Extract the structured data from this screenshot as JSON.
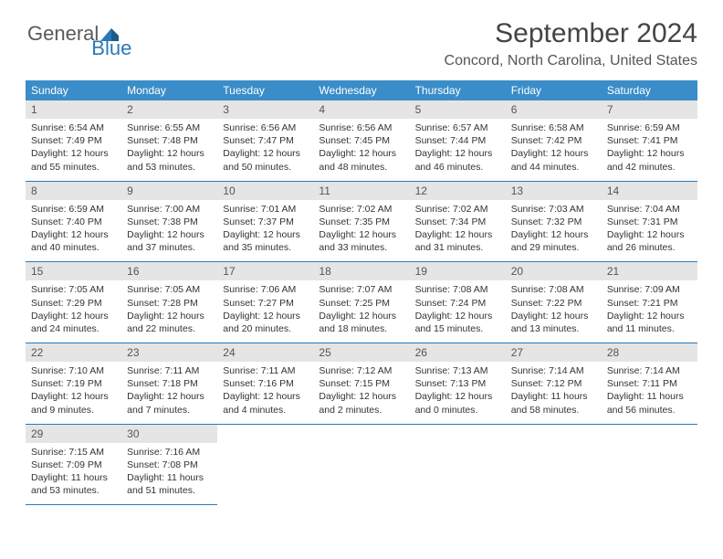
{
  "logo": {
    "general": "General",
    "blue": "Blue"
  },
  "header": {
    "month_title": "September 2024",
    "location": "Concord, North Carolina, United States"
  },
  "day_names": [
    "Sunday",
    "Monday",
    "Tuesday",
    "Wednesday",
    "Thursday",
    "Friday",
    "Saturday"
  ],
  "colors": {
    "header_bg": "#3a8dc8",
    "daynum_bg": "#e5e5e5",
    "border": "#2a7ab8",
    "title": "#444444",
    "location": "#555555",
    "body_text": "#333333"
  },
  "weeks": [
    [
      {
        "num": "1",
        "sunrise": "Sunrise: 6:54 AM",
        "sunset": "Sunset: 7:49 PM",
        "daylight": "Daylight: 12 hours and 55 minutes."
      },
      {
        "num": "2",
        "sunrise": "Sunrise: 6:55 AM",
        "sunset": "Sunset: 7:48 PM",
        "daylight": "Daylight: 12 hours and 53 minutes."
      },
      {
        "num": "3",
        "sunrise": "Sunrise: 6:56 AM",
        "sunset": "Sunset: 7:47 PM",
        "daylight": "Daylight: 12 hours and 50 minutes."
      },
      {
        "num": "4",
        "sunrise": "Sunrise: 6:56 AM",
        "sunset": "Sunset: 7:45 PM",
        "daylight": "Daylight: 12 hours and 48 minutes."
      },
      {
        "num": "5",
        "sunrise": "Sunrise: 6:57 AM",
        "sunset": "Sunset: 7:44 PM",
        "daylight": "Daylight: 12 hours and 46 minutes."
      },
      {
        "num": "6",
        "sunrise": "Sunrise: 6:58 AM",
        "sunset": "Sunset: 7:42 PM",
        "daylight": "Daylight: 12 hours and 44 minutes."
      },
      {
        "num": "7",
        "sunrise": "Sunrise: 6:59 AM",
        "sunset": "Sunset: 7:41 PM",
        "daylight": "Daylight: 12 hours and 42 minutes."
      }
    ],
    [
      {
        "num": "8",
        "sunrise": "Sunrise: 6:59 AM",
        "sunset": "Sunset: 7:40 PM",
        "daylight": "Daylight: 12 hours and 40 minutes."
      },
      {
        "num": "9",
        "sunrise": "Sunrise: 7:00 AM",
        "sunset": "Sunset: 7:38 PM",
        "daylight": "Daylight: 12 hours and 37 minutes."
      },
      {
        "num": "10",
        "sunrise": "Sunrise: 7:01 AM",
        "sunset": "Sunset: 7:37 PM",
        "daylight": "Daylight: 12 hours and 35 minutes."
      },
      {
        "num": "11",
        "sunrise": "Sunrise: 7:02 AM",
        "sunset": "Sunset: 7:35 PM",
        "daylight": "Daylight: 12 hours and 33 minutes."
      },
      {
        "num": "12",
        "sunrise": "Sunrise: 7:02 AM",
        "sunset": "Sunset: 7:34 PM",
        "daylight": "Daylight: 12 hours and 31 minutes."
      },
      {
        "num": "13",
        "sunrise": "Sunrise: 7:03 AM",
        "sunset": "Sunset: 7:32 PM",
        "daylight": "Daylight: 12 hours and 29 minutes."
      },
      {
        "num": "14",
        "sunrise": "Sunrise: 7:04 AM",
        "sunset": "Sunset: 7:31 PM",
        "daylight": "Daylight: 12 hours and 26 minutes."
      }
    ],
    [
      {
        "num": "15",
        "sunrise": "Sunrise: 7:05 AM",
        "sunset": "Sunset: 7:29 PM",
        "daylight": "Daylight: 12 hours and 24 minutes."
      },
      {
        "num": "16",
        "sunrise": "Sunrise: 7:05 AM",
        "sunset": "Sunset: 7:28 PM",
        "daylight": "Daylight: 12 hours and 22 minutes."
      },
      {
        "num": "17",
        "sunrise": "Sunrise: 7:06 AM",
        "sunset": "Sunset: 7:27 PM",
        "daylight": "Daylight: 12 hours and 20 minutes."
      },
      {
        "num": "18",
        "sunrise": "Sunrise: 7:07 AM",
        "sunset": "Sunset: 7:25 PM",
        "daylight": "Daylight: 12 hours and 18 minutes."
      },
      {
        "num": "19",
        "sunrise": "Sunrise: 7:08 AM",
        "sunset": "Sunset: 7:24 PM",
        "daylight": "Daylight: 12 hours and 15 minutes."
      },
      {
        "num": "20",
        "sunrise": "Sunrise: 7:08 AM",
        "sunset": "Sunset: 7:22 PM",
        "daylight": "Daylight: 12 hours and 13 minutes."
      },
      {
        "num": "21",
        "sunrise": "Sunrise: 7:09 AM",
        "sunset": "Sunset: 7:21 PM",
        "daylight": "Daylight: 12 hours and 11 minutes."
      }
    ],
    [
      {
        "num": "22",
        "sunrise": "Sunrise: 7:10 AM",
        "sunset": "Sunset: 7:19 PM",
        "daylight": "Daylight: 12 hours and 9 minutes."
      },
      {
        "num": "23",
        "sunrise": "Sunrise: 7:11 AM",
        "sunset": "Sunset: 7:18 PM",
        "daylight": "Daylight: 12 hours and 7 minutes."
      },
      {
        "num": "24",
        "sunrise": "Sunrise: 7:11 AM",
        "sunset": "Sunset: 7:16 PM",
        "daylight": "Daylight: 12 hours and 4 minutes."
      },
      {
        "num": "25",
        "sunrise": "Sunrise: 7:12 AM",
        "sunset": "Sunset: 7:15 PM",
        "daylight": "Daylight: 12 hours and 2 minutes."
      },
      {
        "num": "26",
        "sunrise": "Sunrise: 7:13 AM",
        "sunset": "Sunset: 7:13 PM",
        "daylight": "Daylight: 12 hours and 0 minutes."
      },
      {
        "num": "27",
        "sunrise": "Sunrise: 7:14 AM",
        "sunset": "Sunset: 7:12 PM",
        "daylight": "Daylight: 11 hours and 58 minutes."
      },
      {
        "num": "28",
        "sunrise": "Sunrise: 7:14 AM",
        "sunset": "Sunset: 7:11 PM",
        "daylight": "Daylight: 11 hours and 56 minutes."
      }
    ],
    [
      {
        "num": "29",
        "sunrise": "Sunrise: 7:15 AM",
        "sunset": "Sunset: 7:09 PM",
        "daylight": "Daylight: 11 hours and 53 minutes."
      },
      {
        "num": "30",
        "sunrise": "Sunrise: 7:16 AM",
        "sunset": "Sunset: 7:08 PM",
        "daylight": "Daylight: 11 hours and 51 minutes."
      },
      null,
      null,
      null,
      null,
      null
    ]
  ]
}
